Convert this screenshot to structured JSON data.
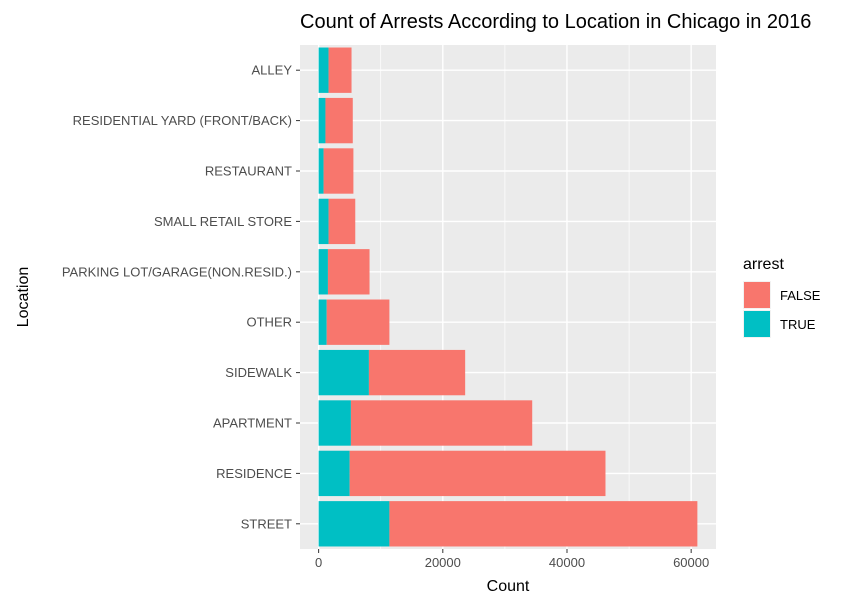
{
  "chart_data": {
    "type": "bar",
    "orientation": "horizontal",
    "stacked": true,
    "title": "Count of Arrests According to Location in Chicago in 2016",
    "xlabel": "Count",
    "ylabel": "Location",
    "xlim": [
      0,
      64000
    ],
    "x_ticks": [
      0,
      20000,
      40000,
      60000
    ],
    "x_tick_labels": [
      "0",
      "20000",
      "40000",
      "60000"
    ],
    "grid": true,
    "legend_position": "right",
    "legend_title": "arrest",
    "categories": [
      "ALLEY",
      "RESIDENTIAL YARD (FRONT/BACK)",
      "RESTAURANT",
      "SMALL RETAIL STORE",
      "PARKING LOT/GARAGE(NON.RESID.)",
      "OTHER",
      "SIDEWALK",
      "APARTMENT",
      "RESIDENCE",
      "STREET"
    ],
    "series": [
      {
        "name": "TRUE",
        "color": "#00BFC4",
        "values": [
          1600,
          1100,
          800,
          1600,
          1500,
          1300,
          8100,
          5200,
          5000,
          11400
        ]
      },
      {
        "name": "FALSE",
        "color": "#F8766D",
        "values": [
          3700,
          4400,
          4800,
          4300,
          6700,
          10100,
          15500,
          29200,
          41200,
          49600
        ]
      }
    ],
    "legend_order": [
      "FALSE",
      "TRUE"
    ],
    "panel_background": "#EBEBEB",
    "grid_color": "#FFFFFF"
  }
}
